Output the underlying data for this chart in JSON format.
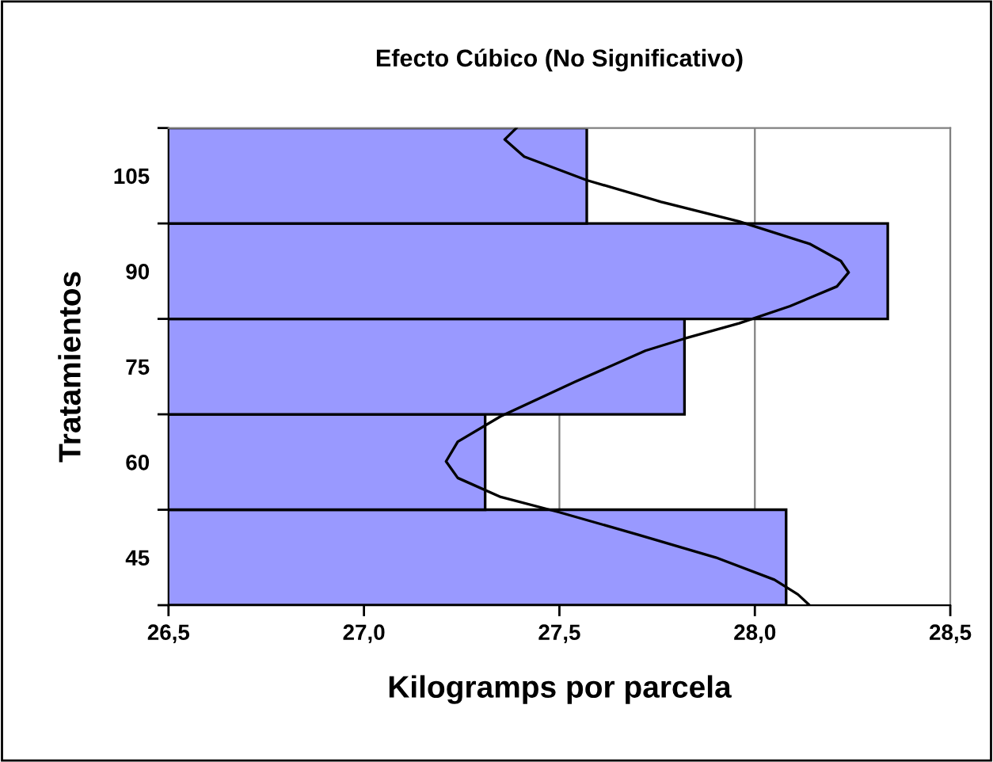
{
  "chart_data": {
    "type": "bar",
    "orientation": "horizontal",
    "title": "Efecto Cúbico (No Significativo)",
    "xlabel": "Kilogramps por parcela",
    "ylabel": "Tratamientos",
    "xlim": [
      26.5,
      28.5
    ],
    "xticks": [
      {
        "value": 26.5,
        "label": "26,5"
      },
      {
        "value": 27.0,
        "label": "27,0"
      },
      {
        "value": 27.5,
        "label": "27,5"
      },
      {
        "value": 28.0,
        "label": "28,0"
      },
      {
        "value": 28.5,
        "label": "28,5"
      }
    ],
    "ylim": [
      37.5,
      112.5
    ],
    "yticks": [
      {
        "value": 37.5,
        "label": null
      },
      45,
      {
        "value": 52.5,
        "label": null
      },
      60,
      {
        "value": 67.5,
        "label": null
      },
      75,
      {
        "value": 82.5,
        "label": null
      },
      90,
      {
        "value": 97.5,
        "label": null
      },
      105,
      {
        "value": 112.5,
        "label": null
      }
    ],
    "grid": "x",
    "series": [
      {
        "color": "#9999ff",
        "x": [
          45,
          60,
          75,
          90,
          105
        ],
        "values": [
          28.08,
          27.31,
          27.82,
          28.34,
          27.57
        ]
      },
      {
        "type": "line",
        "color": "#000000",
        "x": [
          112.5,
          110.7,
          108.0,
          104.3,
          100.9,
          97.8,
          94.3,
          91.6,
          89.8,
          87.6,
          84.5,
          81.8,
          79.4,
          77.5,
          72.6,
          67.2,
          63.2,
          60.1,
          57.5,
          54.5,
          52.1,
          48.6,
          45.0,
          41.5,
          39.2,
          37.5
        ],
        "values": [
          27.39,
          27.36,
          27.41,
          27.57,
          27.76,
          27.96,
          28.14,
          28.22,
          28.24,
          28.21,
          28.09,
          27.96,
          27.82,
          27.72,
          27.54,
          27.35,
          27.24,
          27.21,
          27.24,
          27.35,
          27.5,
          27.7,
          27.9,
          28.05,
          28.11,
          28.14
        ]
      }
    ]
  }
}
